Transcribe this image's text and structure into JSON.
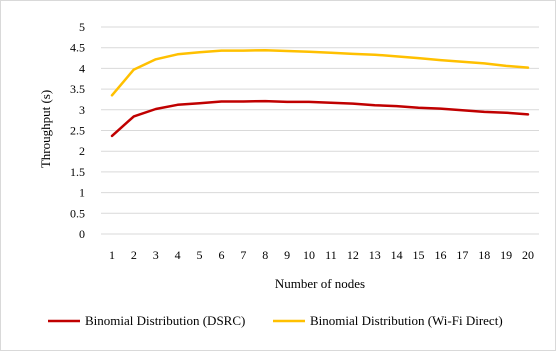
{
  "chart_data": {
    "type": "line",
    "title": "",
    "xlabel": "Number of nodes",
    "ylabel": "Throughput (s)",
    "x": [
      "1",
      "2",
      "3",
      "4",
      "5",
      "6",
      "7",
      "8",
      "9",
      "10",
      "11",
      "12",
      "13",
      "14",
      "15",
      "16",
      "17",
      "18",
      "19",
      "20"
    ],
    "yticks": [
      "0",
      "0.5",
      "1",
      "1.5",
      "2",
      "2.5",
      "3",
      "3.5",
      "4",
      "4.5",
      "5"
    ],
    "ylim": [
      0,
      5
    ],
    "grid": true,
    "legend_position": "bottom",
    "series": [
      {
        "name": "Binomial Distribution (DSRC)",
        "color": "#c00000",
        "values": [
          2.37,
          2.84,
          3.02,
          3.12,
          3.16,
          3.2,
          3.2,
          3.21,
          3.19,
          3.19,
          3.17,
          3.15,
          3.11,
          3.09,
          3.05,
          3.03,
          2.99,
          2.95,
          2.93,
          2.89
        ]
      },
      {
        "name": "Binomial Distribution (Wi-Fi Direct)",
        "color": "#ffc000",
        "values": [
          3.35,
          3.97,
          4.22,
          4.34,
          4.39,
          4.43,
          4.43,
          4.44,
          4.42,
          4.4,
          4.38,
          4.35,
          4.33,
          4.29,
          4.25,
          4.2,
          4.16,
          4.12,
          4.06,
          4.02
        ]
      }
    ]
  }
}
